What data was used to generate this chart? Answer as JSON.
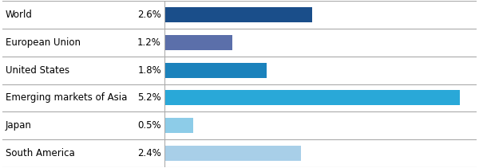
{
  "categories": [
    "World",
    "European Union",
    "United States",
    "Emerging markets of Asia",
    "Japan",
    "South America"
  ],
  "values": [
    2.6,
    1.2,
    1.8,
    5.2,
    0.5,
    2.4
  ],
  "labels": [
    "2.6%",
    "1.2%",
    "1.8%",
    "5.2%",
    "0.5%",
    "2.4%"
  ],
  "bar_colors": [
    "#1a4e8a",
    "#5b6faa",
    "#1b82bc",
    "#29a8d8",
    "#8dcce8",
    "#a8cfe8"
  ],
  "max_value": 5.5,
  "background_color": "#ffffff",
  "label_fontsize": 8.5,
  "value_fontsize": 8.5,
  "bar_height": 0.55,
  "separator_color": "#aaaaaa",
  "separator_linewidth": 0.8
}
